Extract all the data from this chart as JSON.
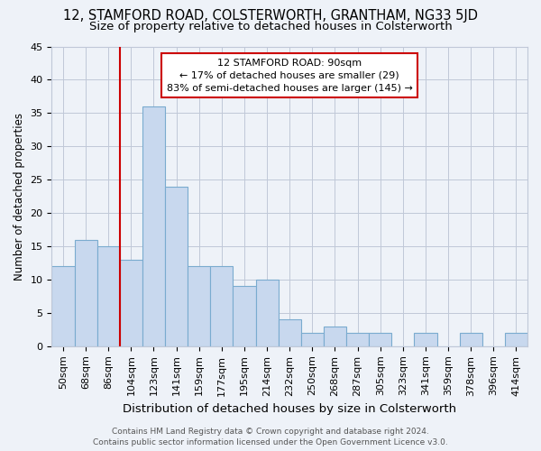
{
  "title": "12, STAMFORD ROAD, COLSTERWORTH, GRANTHAM, NG33 5JD",
  "subtitle": "Size of property relative to detached houses in Colsterworth",
  "xlabel": "Distribution of detached houses by size in Colsterworth",
  "ylabel": "Number of detached properties",
  "categories": [
    "50sqm",
    "68sqm",
    "86sqm",
    "104sqm",
    "123sqm",
    "141sqm",
    "159sqm",
    "177sqm",
    "195sqm",
    "214sqm",
    "232sqm",
    "250sqm",
    "268sqm",
    "287sqm",
    "305sqm",
    "323sqm",
    "341sqm",
    "359sqm",
    "378sqm",
    "396sqm",
    "414sqm"
  ],
  "values": [
    12,
    16,
    15,
    13,
    36,
    24,
    12,
    12,
    9,
    10,
    4,
    2,
    3,
    2,
    2,
    0,
    2,
    0,
    2,
    0,
    2
  ],
  "bar_color": "#c8d8ee",
  "bar_edgecolor": "#7aabcf",
  "vline_color": "#cc0000",
  "vline_index": 2.5,
  "annotation_text_line1": "12 STAMFORD ROAD: 90sqm",
  "annotation_text_line2": "← 17% of detached houses are smaller (29)",
  "annotation_text_line3": "83% of semi-detached houses are larger (145) →",
  "annotation_box_facecolor": "white",
  "annotation_box_edgecolor": "#cc0000",
  "footer_line1": "Contains HM Land Registry data © Crown copyright and database right 2024.",
  "footer_line2": "Contains public sector information licensed under the Open Government Licence v3.0.",
  "background_color": "#eef2f8",
  "grid_color": "#c0c8d8",
  "ylim": [
    0,
    45
  ],
  "yticks": [
    0,
    5,
    10,
    15,
    20,
    25,
    30,
    35,
    40,
    45
  ],
  "title_fontsize": 10.5,
  "subtitle_fontsize": 9.5,
  "xlabel_fontsize": 9.5,
  "ylabel_fontsize": 8.5,
  "tick_fontsize": 8,
  "annotation_fontsize": 8,
  "footer_fontsize": 6.5
}
